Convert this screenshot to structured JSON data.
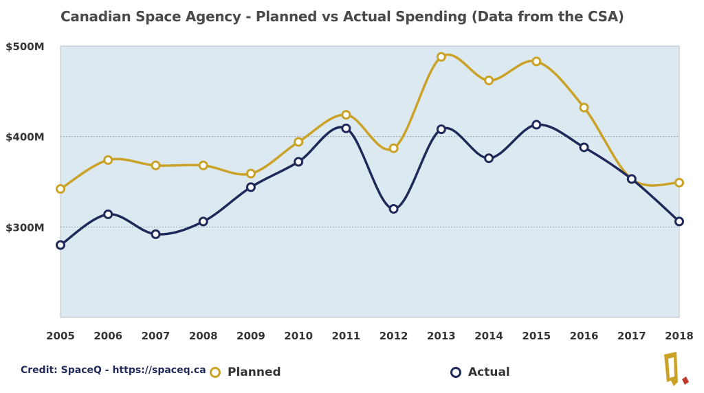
{
  "title": "Canadian Space Agency - Planned vs Actual Spending (Data from the CSA)",
  "credit": "Credit: SpaceQ - https://spaceq.ca",
  "legend": [
    {
      "label": "Planned",
      "color": "#c9a227"
    },
    {
      "label": "Actual",
      "color": "#1f2a5a"
    }
  ],
  "colors": {
    "plot_bg": "#dde9f0",
    "planned": "#c9a227",
    "actual": "#1f2a5a"
  },
  "chart_data": {
    "type": "line",
    "x": [
      "2005",
      "2006",
      "2007",
      "2008",
      "2009",
      "2010",
      "2011",
      "2012",
      "2013",
      "2014",
      "2015",
      "2016",
      "2017",
      "2018"
    ],
    "series": [
      {
        "name": "Planned",
        "values": [
          342,
          374,
          368,
          368,
          359,
          394,
          424,
          387,
          488,
          462,
          483,
          432,
          353,
          349
        ]
      },
      {
        "name": "Actual",
        "values": [
          280,
          314,
          292,
          306,
          344,
          372,
          409,
          320,
          408,
          376,
          413,
          388,
          353,
          306
        ]
      }
    ],
    "ylim": [
      200,
      500
    ],
    "yticks": [
      {
        "value": 300,
        "label": "$300M"
      },
      {
        "value": 400,
        "label": "$400M"
      },
      {
        "value": 500,
        "label": "$500M"
      }
    ],
    "grid": true,
    "legend_position": "bottom"
  }
}
